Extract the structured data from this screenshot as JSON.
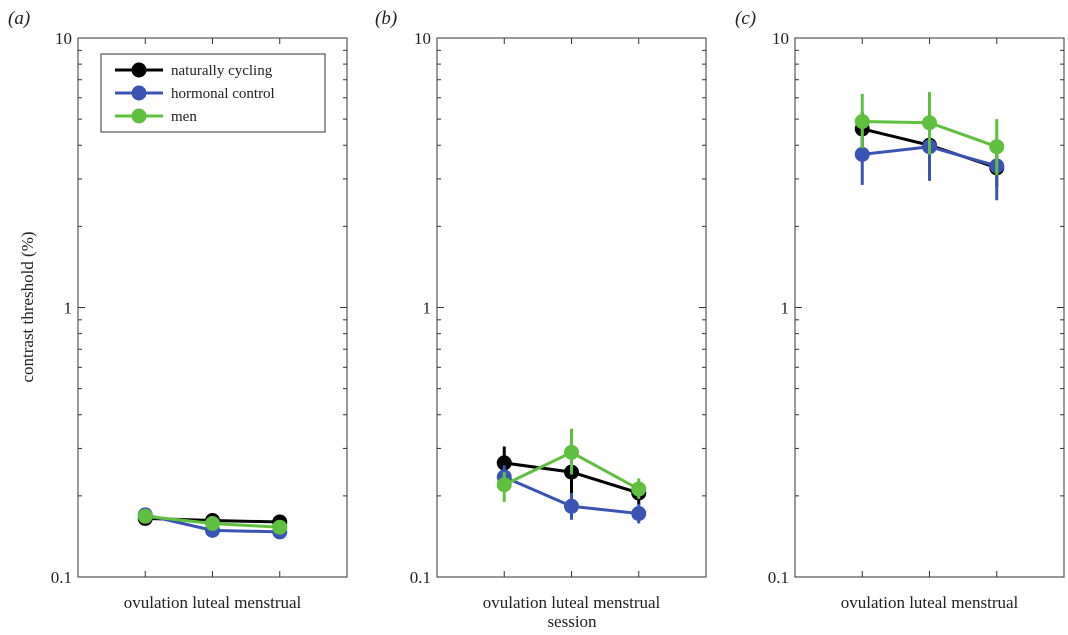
{
  "ylabel": "contrast threshold (%)",
  "shared_xlabel": "session",
  "colors": {
    "naturally_cycling": "#000000",
    "hormonal_control": "#3a54b4",
    "men": "#5fbf3f"
  },
  "legend": [
    {
      "label": "naturally cycling",
      "color": "#000000"
    },
    {
      "label": "hormonal control",
      "color": "#3a54b4"
    },
    {
      "label": "men",
      "color": "#5fbf3f"
    }
  ],
  "chart_data": [
    {
      "type": "line",
      "panel": "(a)",
      "scale": "log",
      "ylim": [
        0.1,
        10
      ],
      "yticks": [
        "0.1",
        "1",
        "10"
      ],
      "categories": [
        "ovulation",
        "luteal",
        "menstrual"
      ],
      "xtick_text": "ovulation luteal menstrual",
      "legend_position": "top-left",
      "series": [
        {
          "name": "naturally cycling",
          "color": "#000000",
          "values": [
            0.165,
            0.162,
            0.16
          ],
          "err_low": [
            0.158,
            0.156,
            0.154
          ],
          "err_high": [
            0.172,
            0.168,
            0.166
          ]
        },
        {
          "name": "hormonal control",
          "color": "#3a54b4",
          "values": [
            0.17,
            0.149,
            0.147
          ],
          "err_low": [
            0.163,
            0.143,
            0.141
          ],
          "err_high": [
            0.177,
            0.155,
            0.153
          ]
        },
        {
          "name": "men",
          "color": "#5fbf3f",
          "values": [
            0.168,
            0.158,
            0.153
          ],
          "err_low": [
            0.161,
            0.152,
            0.147
          ],
          "err_high": [
            0.175,
            0.164,
            0.159
          ]
        }
      ]
    },
    {
      "type": "line",
      "panel": "(b)",
      "scale": "log",
      "ylim": [
        0.1,
        10
      ],
      "yticks": [
        "0.1",
        "1",
        "10"
      ],
      "categories": [
        "ovulation",
        "luteal",
        "menstrual"
      ],
      "xtick_text": "ovulation luteal menstrual",
      "series": [
        {
          "name": "naturally cycling",
          "color": "#000000",
          "values": [
            0.265,
            0.245,
            0.205
          ],
          "err_low": [
            0.235,
            0.2,
            0.185
          ],
          "err_high": [
            0.305,
            0.3,
            0.225
          ]
        },
        {
          "name": "hormonal control",
          "color": "#3a54b4",
          "values": [
            0.235,
            0.183,
            0.172
          ],
          "err_low": [
            0.215,
            0.163,
            0.158
          ],
          "err_high": [
            0.26,
            0.205,
            0.187
          ]
        },
        {
          "name": "men",
          "color": "#5fbf3f",
          "values": [
            0.22,
            0.29,
            0.212
          ],
          "err_low": [
            0.19,
            0.24,
            0.195
          ],
          "err_high": [
            0.245,
            0.355,
            0.232
          ]
        }
      ]
    },
    {
      "type": "line",
      "panel": "(c)",
      "scale": "log",
      "ylim": [
        0.1,
        10
      ],
      "yticks": [
        "0.1",
        "1",
        "10"
      ],
      "categories": [
        "ovulation",
        "luteal",
        "menstrual"
      ],
      "xtick_text": "ovulation luteal menstrual",
      "series": [
        {
          "name": "naturally cycling",
          "color": "#000000",
          "values": [
            4.6,
            4.0,
            3.3
          ],
          "err_low": [
            3.9,
            3.3,
            2.8
          ],
          "err_high": [
            5.3,
            4.7,
            3.9
          ]
        },
        {
          "name": "hormonal control",
          "color": "#3a54b4",
          "values": [
            3.7,
            3.95,
            3.35
          ],
          "err_low": [
            2.85,
            2.95,
            2.5
          ],
          "err_high": [
            4.7,
            4.9,
            4.1
          ]
        },
        {
          "name": "men",
          "color": "#5fbf3f",
          "values": [
            4.9,
            4.85,
            3.95
          ],
          "err_low": [
            3.9,
            3.7,
            3.1
          ],
          "err_high": [
            6.2,
            6.3,
            5.0
          ]
        }
      ]
    }
  ]
}
